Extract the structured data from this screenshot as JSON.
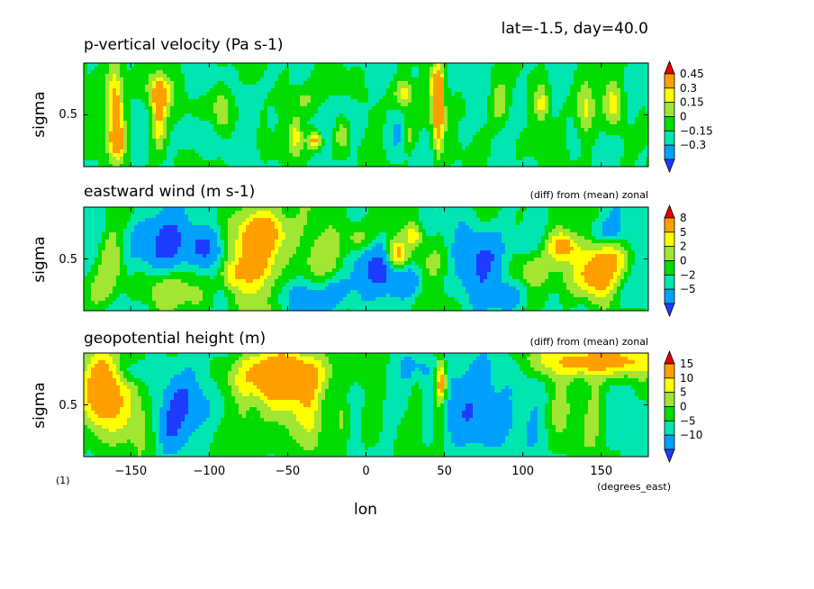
{
  "header": {
    "text": "lat=-1.5, day=40.0"
  },
  "figure_label": "(1)",
  "colors": [
    "#1e3cff",
    "#00a0ff",
    "#00e6b0",
    "#00dc00",
    "#a0e632",
    "#ffff00",
    "#ffa000",
    "#e60000"
  ],
  "chart_data": [
    {
      "type": "heatmap",
      "title": "p-vertical velocity (Pa s-1)",
      "subtitle": "",
      "ylabel": "sigma",
      "y_ticks": [
        "0.5"
      ],
      "xlim": [
        -180,
        180
      ],
      "ylim": [
        0,
        1
      ],
      "levels": [
        "0.45",
        "0.3",
        "0.15",
        "0",
        "-0.15",
        "-0.3"
      ],
      "blobs": [
        [
          -160,
          0.58,
          4,
          0.28,
          0.62
        ],
        [
          -158,
          0.25,
          3,
          0.1,
          0.55
        ],
        [
          -132,
          0.45,
          3,
          0.2,
          0.45
        ],
        [
          -132,
          0.72,
          5,
          0.12,
          0.45
        ],
        [
          -92,
          0.55,
          4,
          0.14,
          0.36
        ],
        [
          -45,
          0.32,
          3,
          0.14,
          0.33
        ],
        [
          -40,
          0.65,
          6,
          0.1,
          0.25
        ],
        [
          -33,
          0.25,
          3,
          0.06,
          0.55
        ],
        [
          -15,
          0.3,
          3,
          0.1,
          0.3
        ],
        [
          24,
          0.7,
          4,
          0.1,
          0.45
        ],
        [
          46,
          0.55,
          2.5,
          0.28,
          0.75
        ],
        [
          45,
          0.8,
          3,
          0.08,
          0.45
        ],
        [
          27,
          0.3,
          3,
          0.1,
          0.25
        ],
        [
          85,
          0.6,
          4,
          0.14,
          0.32
        ],
        [
          112,
          0.6,
          3,
          0.12,
          0.32
        ],
        [
          140,
          0.55,
          4,
          0.2,
          0.4
        ],
        [
          158,
          0.6,
          4,
          0.14,
          0.32
        ],
        [
          -110,
          0.3,
          5,
          0.12,
          -0.15
        ],
        [
          -75,
          0.55,
          5,
          0.2,
          -0.12
        ],
        [
          -60,
          0.45,
          2,
          0.08,
          -0.25
        ],
        [
          -10,
          0.55,
          5,
          0.2,
          -0.12
        ],
        [
          20,
          0.3,
          4,
          0.15,
          -0.12
        ],
        [
          60,
          0.35,
          5,
          0.1,
          -0.1
        ],
        [
          100,
          0.65,
          5,
          0.2,
          -0.1
        ],
        [
          170,
          0.45,
          5,
          0.2,
          -0.1
        ]
      ]
    },
    {
      "type": "heatmap",
      "title": "eastward wind (m s-1)",
      "subtitle": "(diff) from (mean) zonal",
      "ylabel": "sigma",
      "y_ticks": [
        "0.5"
      ],
      "xlim": [
        -180,
        180
      ],
      "ylim": [
        0,
        1
      ],
      "levels": [
        "8",
        "5",
        "2",
        "0",
        "-2",
        "-5"
      ],
      "blobs": [
        [
          -70,
          0.55,
          9,
          0.3,
          11
        ],
        [
          -62,
          0.75,
          10,
          0.14,
          8
        ],
        [
          -85,
          0.35,
          5,
          0.1,
          6
        ],
        [
          -162,
          0.48,
          6,
          0.25,
          5
        ],
        [
          -130,
          0.2,
          8,
          0.12,
          3
        ],
        [
          -110,
          0.3,
          8,
          0.2,
          4
        ],
        [
          -40,
          0.3,
          10,
          0.14,
          3
        ],
        [
          -25,
          0.55,
          10,
          0.2,
          3
        ],
        [
          20,
          0.55,
          4,
          0.09,
          9
        ],
        [
          30,
          0.72,
          3,
          0.06,
          6
        ],
        [
          -5,
          0.7,
          6,
          0.1,
          4
        ],
        [
          45,
          0.4,
          8,
          0.18,
          2
        ],
        [
          125,
          0.62,
          6,
          0.09,
          10
        ],
        [
          148,
          0.3,
          9,
          0.12,
          9
        ],
        [
          155,
          0.5,
          8,
          0.1,
          8
        ],
        [
          130,
          0.45,
          15,
          0.18,
          4
        ],
        [
          105,
          0.4,
          6,
          0.1,
          3
        ],
        [
          -130,
          0.65,
          16,
          0.22,
          -6
        ],
        [
          -100,
          0.6,
          8,
          0.15,
          -5
        ],
        [
          -25,
          0.2,
          20,
          0.14,
          -5
        ],
        [
          5,
          0.45,
          10,
          0.14,
          -4
        ],
        [
          25,
          0.28,
          10,
          0.1,
          -4
        ],
        [
          75,
          0.5,
          12,
          0.2,
          -6
        ],
        [
          90,
          0.15,
          10,
          0.1,
          -4
        ],
        [
          150,
          0.75,
          12,
          0.1,
          -3
        ],
        [
          -170,
          0.2,
          5,
          0.1,
          3
        ],
        [
          165,
          0.15,
          8,
          0.1,
          -2
        ]
      ]
    },
    {
      "type": "heatmap",
      "title": "geopotential height (m)",
      "subtitle": "(diff) from (mean) zonal",
      "ylabel": "sigma",
      "y_ticks": [
        "0.5"
      ],
      "xlim": [
        -180,
        180
      ],
      "ylim": [
        0,
        1
      ],
      "levels": [
        "15",
        "10",
        "5",
        "0",
        "-5",
        "-10"
      ],
      "blobs": [
        [
          -168,
          0.62,
          10,
          0.3,
          22
        ],
        [
          -145,
          0.4,
          8,
          0.35,
          6
        ],
        [
          -52,
          0.8,
          22,
          0.16,
          22
        ],
        [
          -55,
          0.5,
          16,
          0.3,
          8
        ],
        [
          -35,
          0.35,
          5,
          0.25,
          7
        ],
        [
          -78,
          0.4,
          4,
          0.25,
          5
        ],
        [
          -95,
          0.7,
          10,
          0.12,
          2
        ],
        [
          48,
          0.72,
          2.5,
          0.15,
          22
        ],
        [
          46,
          0.4,
          2.5,
          0.3,
          8
        ],
        [
          32,
          0.45,
          3,
          0.35,
          5
        ],
        [
          0,
          0.6,
          10,
          0.35,
          3
        ],
        [
          150,
          0.92,
          30,
          0.1,
          18
        ],
        [
          145,
          0.55,
          5,
          0.35,
          7
        ],
        [
          123,
          0.5,
          6,
          0.35,
          5
        ],
        [
          -15,
          0.35,
          3,
          0.25,
          6
        ],
        [
          -110,
          0.6,
          12,
          0.3,
          -10
        ],
        [
          -125,
          0.3,
          8,
          0.2,
          -7
        ],
        [
          65,
          0.6,
          15,
          0.3,
          -10
        ],
        [
          80,
          0.25,
          12,
          0.2,
          -6
        ],
        [
          -10,
          0.65,
          8,
          0.2,
          -5
        ],
        [
          15,
          0.4,
          5,
          0.25,
          -5
        ],
        [
          30,
          0.85,
          12,
          0.1,
          -6
        ],
        [
          -150,
          0.82,
          6,
          0.08,
          -6
        ],
        [
          108,
          0.45,
          6,
          0.25,
          -4
        ],
        [
          170,
          0.4,
          6,
          0.25,
          -3
        ]
      ]
    }
  ],
  "x_axis": {
    "ticks": [
      "-150",
      "-100",
      "-50",
      "0",
      "50",
      "100",
      "150"
    ],
    "label": "lon",
    "units": "(degrees_east)"
  }
}
